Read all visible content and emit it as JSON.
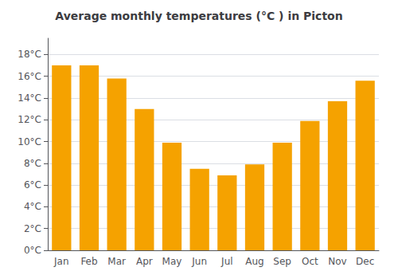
{
  "chart_data": {
    "type": "bar",
    "title": "Average monthly temperatures (°C ) in Picton",
    "categories": [
      "Jan",
      "Feb",
      "Mar",
      "Apr",
      "May",
      "Jun",
      "Jul",
      "Aug",
      "Sep",
      "Oct",
      "Nov",
      "Dec"
    ],
    "values": [
      17.0,
      17.0,
      15.8,
      13.0,
      9.9,
      7.5,
      6.9,
      7.9,
      9.9,
      11.9,
      13.7,
      15.6
    ],
    "color": "#F5A200",
    "ylim": [
      0,
      19.5
    ],
    "yticks": [
      {
        "value": 0,
        "label": "0°C"
      },
      {
        "value": 2,
        "label": "2°C"
      },
      {
        "value": 4,
        "label": "4°C"
      },
      {
        "value": 6,
        "label": "6°C"
      },
      {
        "value": 8,
        "label": "8°C"
      },
      {
        "value": 10,
        "label": "10°C"
      },
      {
        "value": 12,
        "label": "12°C"
      },
      {
        "value": 14,
        "label": "14°C"
      },
      {
        "value": 16,
        "label": "16°C"
      },
      {
        "value": 18,
        "label": "18°C"
      }
    ],
    "grid": true
  }
}
